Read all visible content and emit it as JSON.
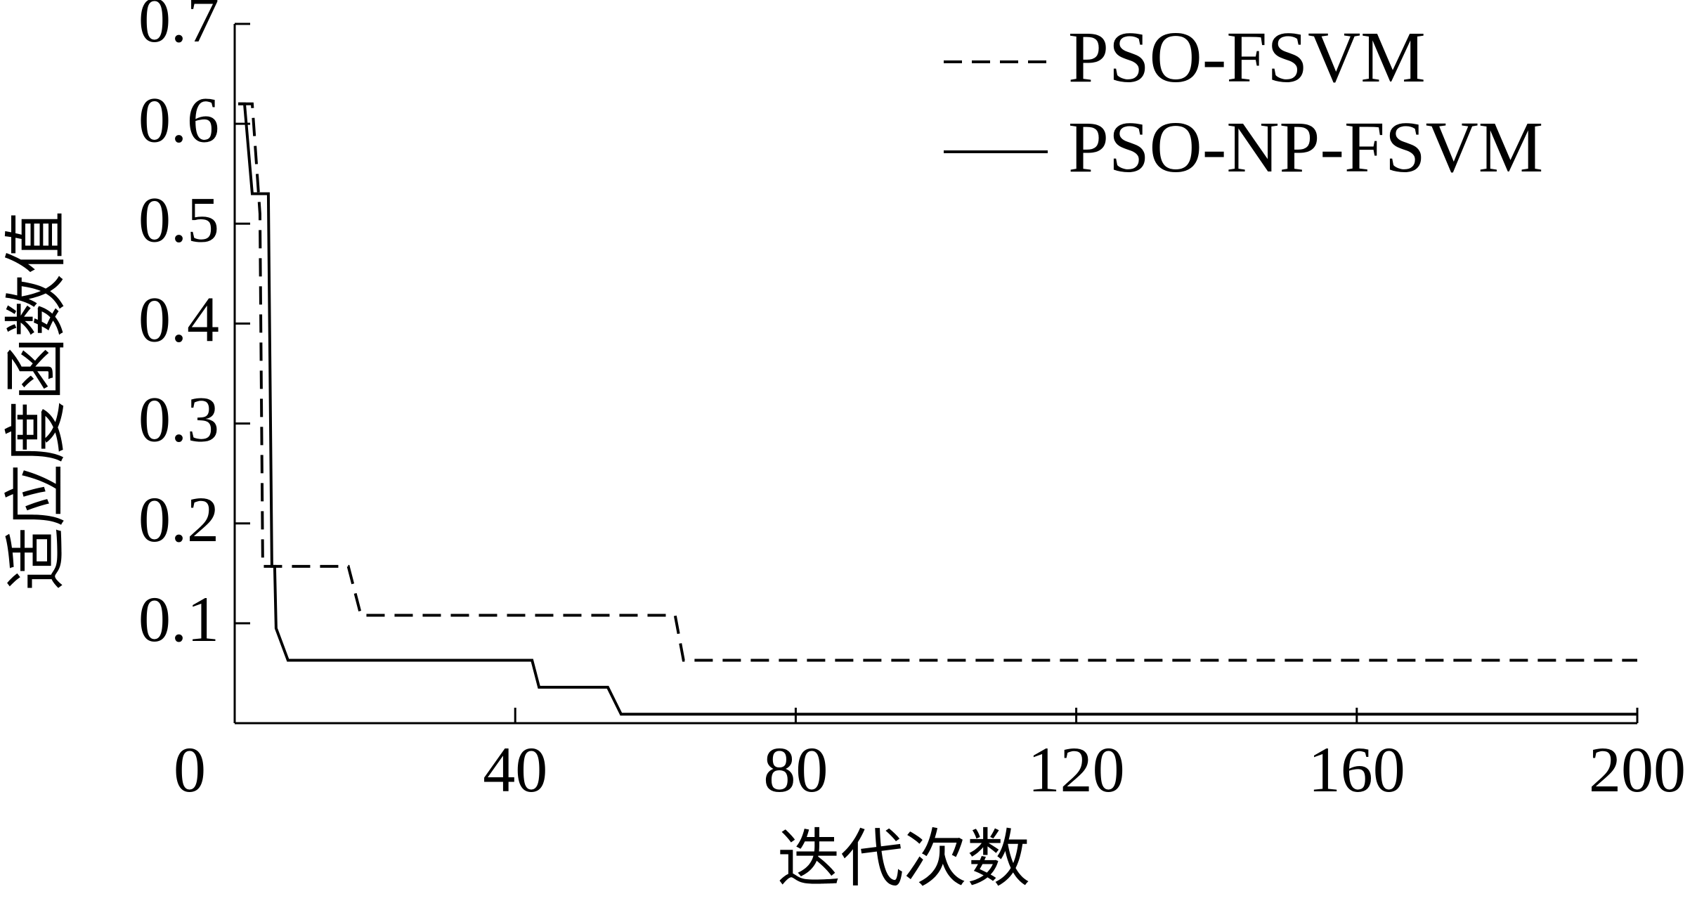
{
  "chart_data": {
    "type": "line",
    "xlabel": "迭代次数",
    "ylabel": "适应度函数值",
    "xlim": [
      0,
      200
    ],
    "ylim": [
      0,
      0.7
    ],
    "xticks": [
      0,
      40,
      80,
      120,
      160,
      200
    ],
    "yticks": [
      0.1,
      0.2,
      0.3,
      0.4,
      0.5,
      0.6,
      0.7
    ],
    "legend": "upper right",
    "series": [
      {
        "name": "PSO-FSVM",
        "color": "#000000",
        "dashed": true,
        "x": [
          0.5,
          2.5,
          3.2,
          3.6,
          4,
          16.2,
          18,
          62.8,
          64,
          200
        ],
        "values": [
          0.62,
          0.62,
          0.55,
          0.51,
          0.157,
          0.157,
          0.108,
          0.108,
          0.063,
          0.063
        ]
      },
      {
        "name": "PSO-NP-FSVM",
        "color": "#000000",
        "dashed": false,
        "x": [
          0.5,
          1.4,
          2.5,
          4.8,
          5.3,
          5.7,
          5.9,
          7.6,
          42.4,
          43.4,
          53.2,
          55.1,
          200
        ],
        "values": [
          0.62,
          0.62,
          0.53,
          0.53,
          0.157,
          0.157,
          0.095,
          0.063,
          0.063,
          0.036,
          0.036,
          0.009,
          0.009
        ]
      }
    ]
  }
}
